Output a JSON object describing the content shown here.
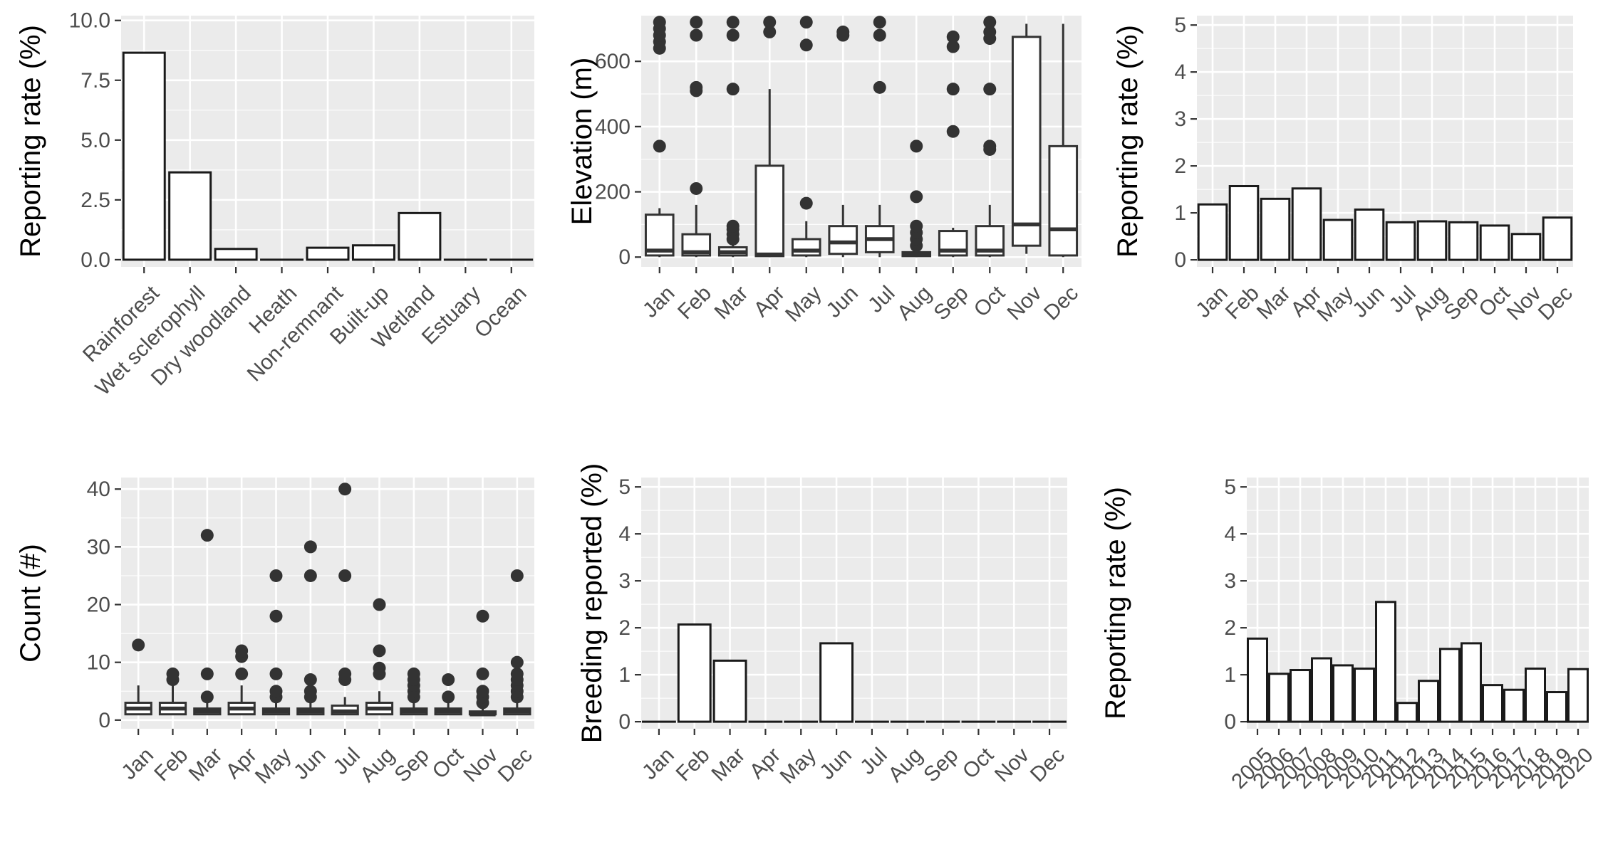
{
  "chart_data": [
    {
      "id": "habitat",
      "type": "bar",
      "ylabel": "Reporting rate (%)",
      "ylim": [
        -0.3,
        10.2
      ],
      "yticks": [
        0,
        2.5,
        5,
        7.5,
        10
      ],
      "ytick_labels": [
        "0.0",
        "2.5",
        "5.0",
        "7.5",
        "10.0"
      ],
      "categories": [
        "Rainforest",
        "Wet sclerophyll",
        "Dry woodland",
        "Heath",
        "Non-remnant",
        "Built-up",
        "Wetland",
        "Estuary",
        "Ocean"
      ],
      "values": [
        8.65,
        3.65,
        0.45,
        0.0,
        0.5,
        0.6,
        1.95,
        0.0,
        0.0
      ],
      "grid": true
    },
    {
      "id": "elevation",
      "type": "box",
      "ylabel": "Elevation (m)",
      "ylim": [
        -30,
        740
      ],
      "yticks": [
        0,
        200,
        400,
        600
      ],
      "ytick_labels": [
        "0",
        "200",
        "400",
        "600"
      ],
      "categories": [
        "Jan",
        "Feb",
        "Mar",
        "Apr",
        "May",
        "Jun",
        "Jul",
        "Aug",
        "Sep",
        "Oct",
        "Nov",
        "Dec"
      ],
      "boxes": [
        {
          "q1": 5,
          "median": 20,
          "q3": 130,
          "wlo": 0,
          "whi": 150,
          "outliers": [
            340,
            640,
            660,
            680,
            700,
            720
          ]
        },
        {
          "q1": 5,
          "median": 15,
          "q3": 70,
          "wlo": 0,
          "whi": 160,
          "outliers": [
            210,
            510,
            520,
            680,
            720
          ]
        },
        {
          "q1": 5,
          "median": 15,
          "q3": 30,
          "wlo": 0,
          "whi": 45,
          "outliers": [
            55,
            70,
            85,
            95,
            515,
            680,
            720
          ]
        },
        {
          "q1": 3,
          "median": 8,
          "q3": 280,
          "wlo": 0,
          "whi": 515,
          "outliers": [
            690,
            720
          ]
        },
        {
          "q1": 5,
          "median": 20,
          "q3": 55,
          "wlo": 0,
          "whi": 110,
          "outliers": [
            165,
            650,
            720
          ]
        },
        {
          "q1": 10,
          "median": 45,
          "q3": 95,
          "wlo": 0,
          "whi": 160,
          "outliers": [
            680,
            690
          ]
        },
        {
          "q1": 15,
          "median": 55,
          "q3": 95,
          "wlo": 0,
          "whi": 160,
          "outliers": [
            520,
            680,
            720
          ]
        },
        {
          "q1": 3,
          "median": 8,
          "q3": 15,
          "wlo": 0,
          "whi": 25,
          "outliers": [
            35,
            55,
            75,
            95,
            185,
            340
          ]
        },
        {
          "q1": 5,
          "median": 20,
          "q3": 80,
          "wlo": 0,
          "whi": 90,
          "outliers": [
            385,
            515,
            645,
            675
          ]
        },
        {
          "q1": 5,
          "median": 20,
          "q3": 95,
          "wlo": 0,
          "whi": 160,
          "outliers": [
            330,
            340,
            515,
            670,
            690,
            720
          ]
        },
        {
          "q1": 35,
          "median": 100,
          "q3": 675,
          "wlo": 10,
          "whi": 715,
          "outliers": []
        },
        {
          "q1": 5,
          "median": 85,
          "q3": 340,
          "wlo": 0,
          "whi": 715,
          "outliers": []
        }
      ],
      "grid": true
    },
    {
      "id": "monthly-reporting",
      "type": "bar",
      "ylabel": "Reporting rate (%)",
      "ylim": [
        -0.15,
        5.2
      ],
      "yticks": [
        0,
        1,
        2,
        3,
        4,
        5
      ],
      "ytick_labels": [
        "0",
        "1",
        "2",
        "3",
        "4",
        "5"
      ],
      "categories": [
        "Jan",
        "Feb",
        "Mar",
        "Apr",
        "May",
        "Jun",
        "Jul",
        "Aug",
        "Sep",
        "Oct",
        "Nov",
        "Dec"
      ],
      "values": [
        1.18,
        1.57,
        1.3,
        1.52,
        0.85,
        1.07,
        0.8,
        0.82,
        0.8,
        0.73,
        0.55,
        0.9
      ],
      "grid": true
    },
    {
      "id": "count",
      "type": "box",
      "ylabel": "Count (#)",
      "ylim": [
        -1.5,
        42
      ],
      "yticks": [
        0,
        10,
        20,
        30,
        40
      ],
      "ytick_labels": [
        "0",
        "10",
        "20",
        "30",
        "40"
      ],
      "categories": [
        "Jan",
        "Feb",
        "Mar",
        "Apr",
        "May",
        "Jun",
        "Jul",
        "Aug",
        "Sep",
        "Oct",
        "Nov",
        "Dec"
      ],
      "boxes": [
        {
          "q1": 1,
          "median": 2,
          "q3": 3,
          "wlo": 1,
          "whi": 6,
          "outliers": [
            13
          ]
        },
        {
          "q1": 1,
          "median": 2,
          "q3": 3,
          "wlo": 1,
          "whi": 6,
          "outliers": [
            7,
            8
          ]
        },
        {
          "q1": 1,
          "median": 1.5,
          "q3": 2,
          "wlo": 1,
          "whi": 3,
          "outliers": [
            4,
            8,
            32
          ]
        },
        {
          "q1": 1,
          "median": 2,
          "q3": 3,
          "wlo": 1,
          "whi": 6,
          "outliers": [
            8,
            11,
            12
          ]
        },
        {
          "q1": 1,
          "median": 1.5,
          "q3": 2,
          "wlo": 1,
          "whi": 3,
          "outliers": [
            4,
            5,
            8,
            18,
            25
          ]
        },
        {
          "q1": 1,
          "median": 1.5,
          "q3": 2,
          "wlo": 1,
          "whi": 3,
          "outliers": [
            4,
            5,
            7,
            25,
            30
          ]
        },
        {
          "q1": 1,
          "median": 1.5,
          "q3": 2.5,
          "wlo": 1,
          "whi": 4,
          "outliers": [
            7,
            8,
            25,
            40
          ]
        },
        {
          "q1": 1,
          "median": 2,
          "q3": 3,
          "wlo": 1,
          "whi": 5,
          "outliers": [
            8,
            9,
            12,
            20
          ]
        },
        {
          "q1": 1,
          "median": 1.5,
          "q3": 2,
          "wlo": 1,
          "whi": 3,
          "outliers": [
            4,
            5,
            6,
            7,
            8
          ]
        },
        {
          "q1": 1,
          "median": 1.5,
          "q3": 2,
          "wlo": 1,
          "whi": 3,
          "outliers": [
            4,
            7
          ]
        },
        {
          "q1": 1,
          "median": 1,
          "q3": 1.5,
          "wlo": 1,
          "whi": 2,
          "outliers": [
            3,
            4,
            5,
            8,
            18
          ]
        },
        {
          "q1": 1,
          "median": 1.5,
          "q3": 2,
          "wlo": 1,
          "whi": 3,
          "outliers": [
            4,
            5,
            6,
            7,
            8,
            10,
            25
          ]
        }
      ],
      "grid": true
    },
    {
      "id": "breeding",
      "type": "bar",
      "ylabel": "Breeding reported (%)",
      "ylim": [
        -0.15,
        5.2
      ],
      "yticks": [
        0,
        1,
        2,
        3,
        4,
        5
      ],
      "ytick_labels": [
        "0",
        "1",
        "2",
        "3",
        "4",
        "5"
      ],
      "categories": [
        "Jan",
        "Feb",
        "Mar",
        "Apr",
        "May",
        "Jun",
        "Jul",
        "Aug",
        "Sep",
        "Oct",
        "Nov",
        "Dec"
      ],
      "values": [
        0,
        2.07,
        1.3,
        0,
        0,
        1.67,
        0,
        0,
        0,
        0,
        0,
        0
      ],
      "grid": true
    },
    {
      "id": "yearly-reporting",
      "type": "bar",
      "ylabel": "Reporting rate (%)",
      "ylim": [
        -0.15,
        5.2
      ],
      "yticks": [
        0,
        1,
        2,
        3,
        4,
        5
      ],
      "ytick_labels": [
        "0",
        "1",
        "2",
        "3",
        "4",
        "5"
      ],
      "categories": [
        "2005",
        "2006",
        "2007",
        "2008",
        "2009",
        "2010",
        "2011",
        "2012",
        "2013",
        "2014",
        "2015",
        "2016",
        "2017",
        "2018",
        "2019",
        "2020"
      ],
      "values": [
        1.77,
        1.02,
        1.1,
        1.35,
        1.2,
        1.13,
        2.55,
        0.4,
        0.87,
        1.55,
        1.67,
        0.78,
        0.68,
        1.13,
        0.63,
        1.12
      ],
      "grid": true
    }
  ]
}
